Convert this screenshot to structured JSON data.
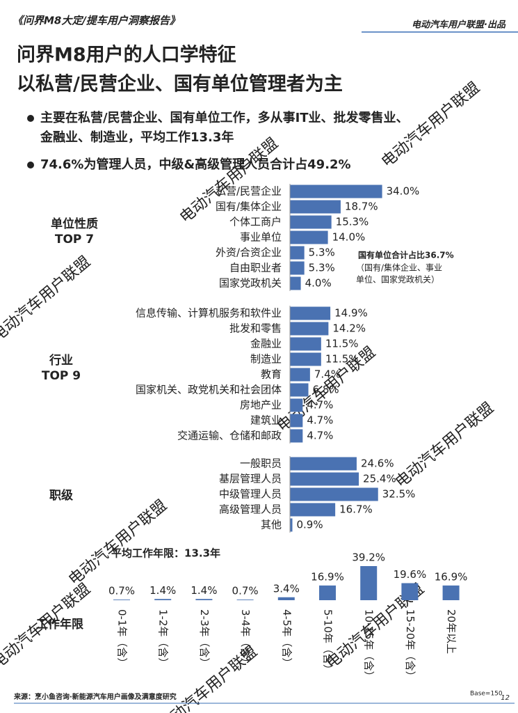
{
  "header": {
    "report": "《问界M8大定/提车用户洞察报告》",
    "publisher": "电动汽车用户联盟·出品"
  },
  "title": "问界M8用户的人口学特征",
  "subtitle": "以私营/民营企业、国有单位管理者为主",
  "bullets": [
    "主要在私营/民营企业、国有单位工作，多从事IT业、批发零售业、",
    "金融业、制造业，平均工作13.3年",
    "74.6%为管理人员，中级&高级管理人员合计占49.2%"
  ],
  "watermark": "电动汽车用户联盟",
  "chart_data": [
    {
      "type": "barh",
      "color": "#4a72b2",
      "label_lines": [
        "单位性质",
        "TOP 7"
      ],
      "categories": [
        "私营/民营企业",
        "国有/集体企业",
        "个体工商户",
        "事业单位",
        "外资/合资企业",
        "自由职业者",
        "国家党政机关"
      ],
      "values": [
        34.0,
        18.7,
        15.3,
        14.0,
        5.3,
        5.3,
        4.0
      ],
      "value_labels": [
        "34.0%",
        "18.7%",
        "15.3%",
        "14.0%",
        "5.3%",
        "5.3%",
        "4.0%"
      ],
      "annotation": "国有单位合计占比36.7%",
      "annotation_note": [
        "（国有/集体企业、事业",
        "单位、国家党政机关）"
      ]
    },
    {
      "type": "barh",
      "color": "#4a72b2",
      "label_lines": [
        "行业",
        "TOP 9"
      ],
      "categories": [
        "信息传输、计算机服务和软件业",
        "批发和零售",
        "金融业",
        "制造业",
        "教育",
        "国家机关、政党机关和社会团体",
        "房地产业",
        "建筑业",
        "交通运输、仓储和邮政"
      ],
      "values": [
        14.9,
        14.2,
        11.5,
        11.5,
        7.4,
        6.8,
        4.7,
        4.7,
        4.7
      ],
      "value_labels": [
        "14.9%",
        "14.2%",
        "11.5%",
        "11.5%",
        "7.4%",
        "6.8%",
        "4.7%",
        "4.7%",
        "4.7%"
      ]
    },
    {
      "type": "barh",
      "color": "#4a72b2",
      "label_lines": [
        "职级"
      ],
      "categories": [
        "一般职员",
        "基层管理人员",
        "中级管理人员",
        "高级管理人员",
        "其他"
      ],
      "values": [
        24.6,
        25.4,
        32.5,
        16.7,
        0.9
      ],
      "value_labels": [
        "24.6%",
        "25.4%",
        "32.5%",
        "16.7%",
        "0.9%"
      ]
    },
    {
      "type": "bar",
      "color": "#4a72b2",
      "title": "平均工作年限：13.3年",
      "label_lines": [
        "工作年限"
      ],
      "categories": [
        "0-1年（含）",
        "1-2年（含）",
        "2-3年（含）",
        "3-4年（含）",
        "4-5年（含）",
        "5-10年（含）",
        "10-15年（含）",
        "15-20年（含）",
        "20年以上"
      ],
      "values": [
        0.7,
        1.4,
        1.4,
        0.7,
        3.4,
        16.9,
        39.2,
        19.6,
        16.9
      ],
      "value_labels": [
        "0.7%",
        "1.4%",
        "1.4%",
        "0.7%",
        "3.4%",
        "16.9%",
        "39.2%",
        "19.6%",
        "16.9%"
      ]
    }
  ],
  "footer": {
    "source": "来源：烹小鱼咨询·新能源汽车用户画像及满意度研究",
    "base": "Base=150",
    "page": "12"
  }
}
